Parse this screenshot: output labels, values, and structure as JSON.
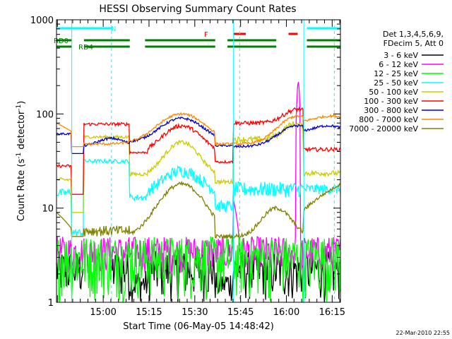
{
  "chart_data": {
    "type": "line",
    "title": "HESSI Observing Summary Count Rates",
    "xlabel": "Start Time (06-May-05 14:48:42)",
    "ylabel": "Count Rate (s",
    "ylabel_sup": "-1",
    "ylabel_mid": " detector",
    "ylabel_end": ")",
    "y_scale": "log",
    "ylim": [
      1,
      1000
    ],
    "y_ticks": [
      {
        "value": 1,
        "label": "1"
      },
      {
        "value": 10,
        "label": "10"
      },
      {
        "value": 100,
        "label": "100"
      },
      {
        "value": 1000,
        "label": "1000"
      }
    ],
    "xlim_min": [
      -4,
      89
    ],
    "x_ticks": [
      {
        "min": 11.3,
        "label": "15:00"
      },
      {
        "min": 26.3,
        "label": "15:15"
      },
      {
        "min": 41.3,
        "label": "15:30"
      },
      {
        "min": 56.3,
        "label": "15:45"
      },
      {
        "min": 71.3,
        "label": "16:00"
      },
      {
        "min": 86.3,
        "label": "16:15"
      }
    ],
    "legend_header": [
      "Det 1,3,4,5,6,9,",
      "FDecim 5, Att 0"
    ],
    "series": [
      {
        "name": "3 - 6 keV",
        "color": "#000000"
      },
      {
        "name": "6 - 12 keV",
        "color": "#ff00ff"
      },
      {
        "name": "12 - 25 keV",
        "color": "#00ff00"
      },
      {
        "name": "25 - 50 keV",
        "color": "#00ffff"
      },
      {
        "name": "50 - 100 keV",
        "color": "#cccc00"
      },
      {
        "name": "100 - 300 keV",
        "color": "#ff0000"
      },
      {
        "name": "300 - 800 keV",
        "color": "#0000cc"
      },
      {
        "name": "800 - 7000 keV",
        "color": "#ff8800"
      },
      {
        "name": "7000 - 20000 keV",
        "color": "#808000"
      }
    ],
    "flags": [
      {
        "label": "N",
        "color": "#00ffff",
        "segments": [
          [
            -4,
            14
          ],
          [
            78,
            89
          ]
        ]
      },
      {
        "label": "F",
        "color": "#ff0000",
        "segments": [
          [
            54,
            58
          ],
          [
            72,
            75
          ]
        ]
      },
      {
        "label": "RD0",
        "color": "#008000",
        "segments": [
          [
            -4,
            1
          ],
          [
            5,
            20
          ],
          [
            25,
            48
          ],
          [
            52,
            68
          ],
          [
            78,
            89
          ]
        ]
      },
      {
        "label": "RD4",
        "color": "#008000",
        "segments": [
          [
            -4,
            1
          ],
          [
            5,
            20
          ],
          [
            25,
            48
          ],
          [
            52,
            68
          ],
          [
            78,
            89
          ]
        ]
      }
    ],
    "vlines_solid": [
      1,
      54,
      77
    ],
    "vlines_dashed": [
      14,
      56,
      87
    ]
  },
  "footer": {
    "date": "22-Mar-2010 22:55"
  }
}
